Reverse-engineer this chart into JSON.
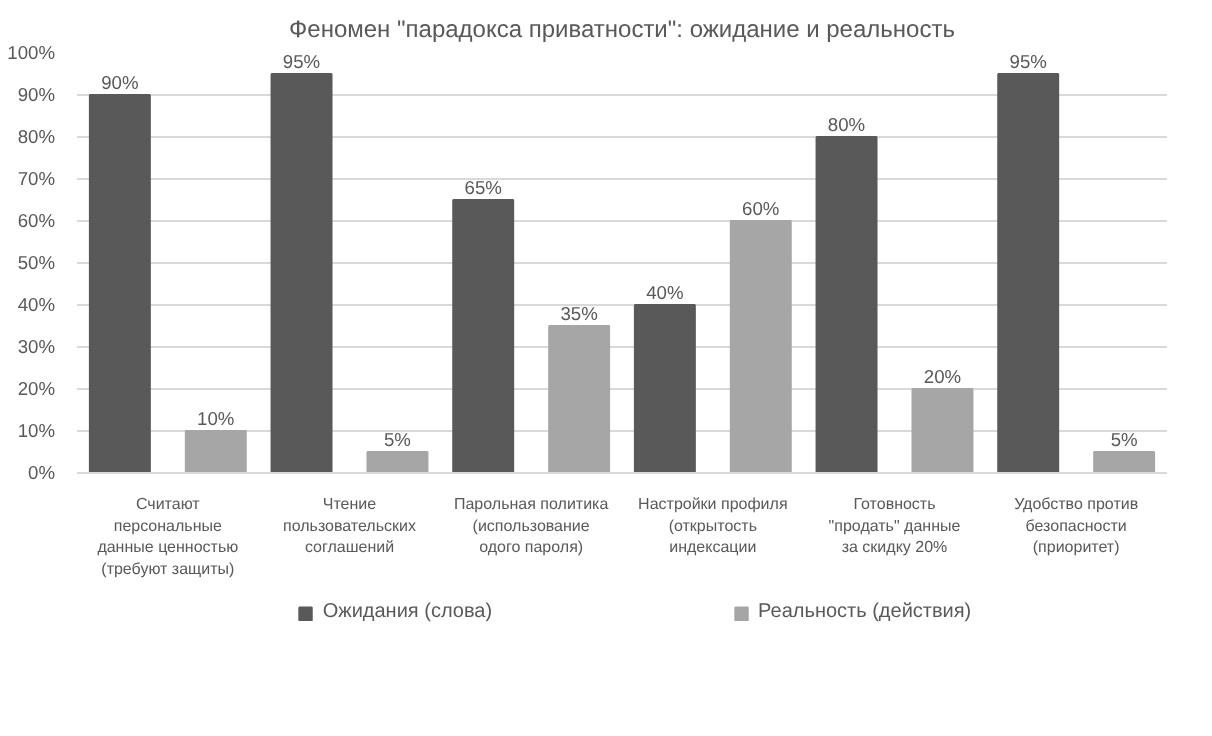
{
  "chart_data": {
    "type": "bar",
    "title": "Феномен \"парадокса приватности\": ожидание и реальность",
    "categories": [
      "Считают персональные данные ценностью (требуют защиты)",
      "Чтение пользовательских соглашений",
      "Парольная политика (использование одого пароля)",
      "Настройки профиля (открытость индексации",
      "Готовность \"продать\" данные за скидку 20%",
      "Удобство против безопасности (приоритет)"
    ],
    "series": [
      {
        "name": "Ожидания (слова)",
        "color": "#595959",
        "values": [
          90,
          95,
          65,
          40,
          80,
          95
        ],
        "value_labels": [
          "90%",
          "95%",
          "65%",
          "40%",
          "80%",
          "95%"
        ]
      },
      {
        "name": "Реальность (действия)",
        "color": "#a6a6a6",
        "values": [
          10,
          5,
          35,
          60,
          20,
          5
        ],
        "value_labels": [
          "10%",
          "5%",
          "35%",
          "60%",
          "20%",
          "5%"
        ]
      }
    ],
    "ylim": [
      0,
      100
    ],
    "yticks": [
      {
        "value": 0,
        "label": "0%"
      },
      {
        "value": 10,
        "label": "10%"
      },
      {
        "value": 20,
        "label": "20%"
      },
      {
        "value": 30,
        "label": "30%"
      },
      {
        "value": 40,
        "label": "40%"
      },
      {
        "value": 50,
        "label": "50%"
      },
      {
        "value": 60,
        "label": "60%"
      },
      {
        "value": 70,
        "label": "70%"
      },
      {
        "value": 80,
        "label": "80%"
      },
      {
        "value": 90,
        "label": "90%"
      },
      {
        "value": 100,
        "label": "100%"
      }
    ],
    "grid": "y",
    "legend": "bottom"
  }
}
